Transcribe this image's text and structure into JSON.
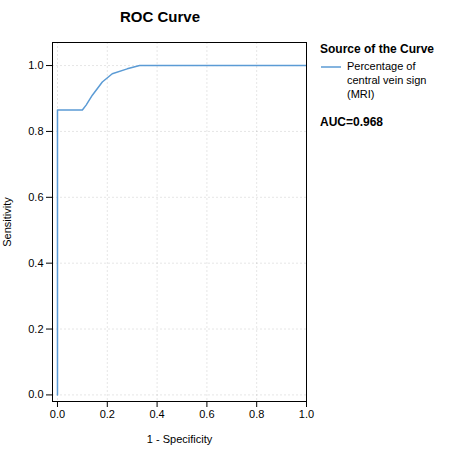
{
  "chart_data": {
    "type": "line",
    "title": "ROC Curve",
    "xlabel": "1 - Specificity",
    "ylabel": "Sensitivity",
    "x": [
      0.0,
      0.0,
      0.015,
      0.1,
      0.115,
      0.14,
      0.18,
      0.22,
      0.28,
      0.33,
      0.37,
      0.4,
      1.0
    ],
    "series": [
      {
        "name": "Percentage of\ncentral vein sign\n(MRI)",
        "color": "#5B9BD5",
        "values": [
          0.0,
          0.865,
          0.865,
          0.865,
          0.88,
          0.91,
          0.95,
          0.975,
          0.99,
          1.0,
          1.0,
          1.0,
          1.0
        ]
      }
    ],
    "xlim": [
      -0.02,
      1.0
    ],
    "ylim": [
      -0.02,
      1.07
    ],
    "xticks": [
      {
        "value": 0.0,
        "label": "0.0"
      },
      0.2,
      0.4,
      0.6,
      0.8,
      {
        "value": 1.0,
        "label": "1.0"
      }
    ],
    "yticks": [
      {
        "value": 0.0,
        "label": "0.0"
      },
      0.2,
      0.4,
      0.6,
      0.8,
      {
        "value": 1.0,
        "label": "1.0"
      }
    ],
    "grid": true,
    "legend": "right",
    "legend_title": "Source of the Curve",
    "annotations": [
      "AUC=0.968"
    ]
  }
}
